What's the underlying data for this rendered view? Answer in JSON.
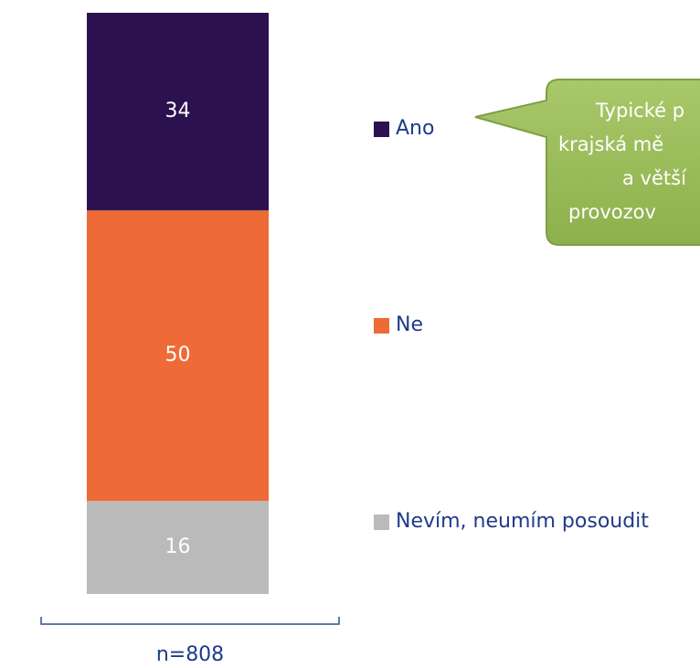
{
  "chart_data": {
    "type": "bar",
    "stacked": true,
    "categories": [
      "n=808"
    ],
    "series": [
      {
        "name": "Ano",
        "color": "#2b1150",
        "values": [
          34
        ]
      },
      {
        "name": "Ne",
        "color": "#ee6a37",
        "values": [
          50
        ]
      },
      {
        "name": "Nevím, neumím posoudit",
        "color": "#bababa",
        "values": [
          16
        ]
      }
    ],
    "ylim": [
      0,
      100
    ],
    "annotation": [
      "Typické p",
      "krajská mě",
      "a větší",
      "provozov"
    ]
  }
}
